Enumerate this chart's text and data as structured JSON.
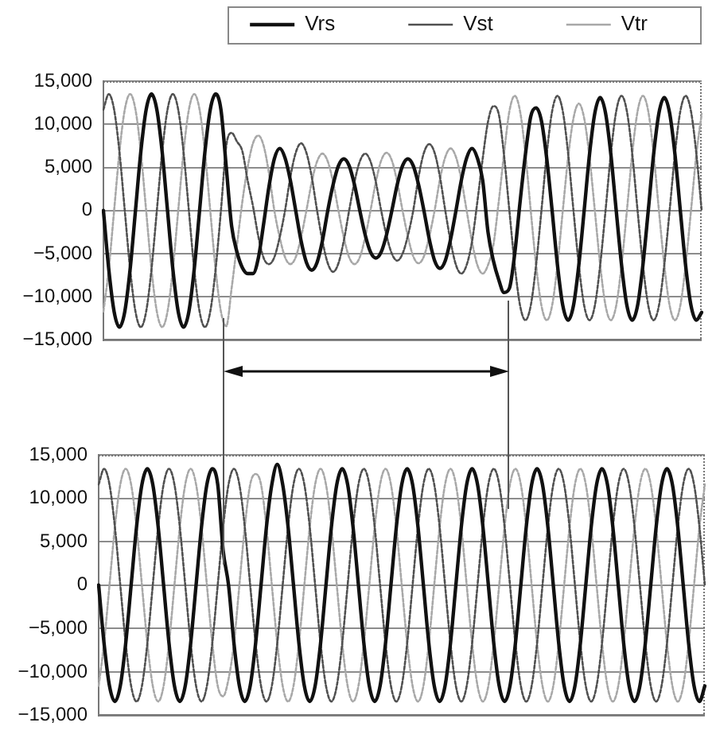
{
  "chart_data": [
    {
      "type": "line",
      "legend": "top right",
      "grid": "y",
      "marker": "none",
      "categories": [
        null,
        null,
        null,
        null,
        null,
        null,
        null,
        null,
        null,
        null,
        null,
        null,
        null,
        null,
        null,
        null,
        null,
        null,
        null,
        null,
        null,
        null,
        null,
        null,
        null,
        null,
        null,
        null,
        null,
        null,
        null,
        null,
        null,
        null,
        null,
        null,
        null,
        null,
        null,
        null,
        null,
        null,
        null,
        null,
        null,
        null,
        null,
        null,
        null,
        null,
        null,
        null,
        null,
        null,
        null,
        null,
        null,
        null,
        null,
        null,
        null,
        null,
        null,
        null,
        null,
        null,
        null,
        null,
        null,
        null,
        null,
        null,
        null,
        null,
        null,
        null,
        null,
        null,
        null,
        null,
        null,
        null,
        null,
        null,
        null,
        null,
        null,
        null,
        null,
        null,
        null,
        null,
        null,
        null,
        null,
        null,
        null,
        null,
        null,
        null,
        null,
        null,
        null,
        null,
        null,
        null,
        null,
        null,
        null,
        null,
        null,
        null,
        null
      ],
      "ylim": [
        -15000,
        15000
      ],
      "yticks": [
        {
          "value": -15000,
          "label": "−15,000"
        },
        {
          "value": -10000,
          "label": "−10,000"
        },
        {
          "value": -5000,
          "label": "−5,000"
        },
        0,
        {
          "value": 5000,
          "label": "5,000"
        },
        {
          "value": 10000,
          "label": "10,000"
        },
        {
          "value": 15000,
          "label": "15,000"
        }
      ],
      "series": [
        {
          "name": "Vrs",
          "color": "#111111",
          "line_style": "solid",
          "values": [
            0,
            -6800,
            -11700,
            -13500,
            -11700,
            -6800,
            0,
            6800,
            11700,
            13500,
            11700,
            6800,
            0,
            -6800,
            -11700,
            -13500,
            -11700,
            -6800,
            0,
            6800,
            11700,
            13500,
            11700,
            5000,
            -1800,
            -4800,
            -6600,
            -7300,
            -7300,
            -5500,
            -1500,
            2800,
            6000,
            7200,
            6100,
            3500,
            0,
            -3500,
            -6000,
            -6900,
            -6000,
            -3500,
            0,
            3000,
            5200,
            6000,
            5200,
            3000,
            0,
            -2800,
            -4800,
            -5500,
            -4800,
            -2800,
            0,
            3000,
            5200,
            6000,
            5200,
            3000,
            0,
            -3300,
            -5800,
            -6700,
            -5800,
            -3300,
            0,
            3500,
            6100,
            7200,
            6100,
            3500,
            -2500,
            -5800,
            -8000,
            -9500,
            -9000,
            -5000,
            1000,
            6500,
            10900,
            11900,
            10400,
            6000,
            0,
            -6300,
            -11000,
            -12700,
            -11000,
            -6300,
            0,
            6500,
            11300,
            13100,
            11300,
            6500,
            0,
            -6300,
            -11000,
            -12700,
            -11000,
            -6300,
            0,
            6500,
            11300,
            13100,
            11300,
            6500,
            0,
            -6400,
            -11000,
            -12700,
            -11800
          ]
        },
        {
          "name": "Vst",
          "color": "#505050",
          "line_style": "dotted",
          "values": [
            11700,
            13500,
            11700,
            6800,
            0,
            -6800,
            -11700,
            -13500,
            -11700,
            -6800,
            0,
            6800,
            11700,
            13500,
            11700,
            6800,
            0,
            -6800,
            -11700,
            -13500,
            -11700,
            -6800,
            0,
            7500,
            9000,
            8000,
            6900,
            3500,
            500,
            -3000,
            -5500,
            -6200,
            -5400,
            -3100,
            0,
            3900,
            6700,
            7800,
            6700,
            3900,
            0,
            -3500,
            -6100,
            -7100,
            -6100,
            -3500,
            0,
            3300,
            5700,
            6600,
            5700,
            3300,
            0,
            -2900,
            -5000,
            -5800,
            -5000,
            -2900,
            0,
            3900,
            6700,
            7700,
            6700,
            3900,
            0,
            -3600,
            -6300,
            -7300,
            -6300,
            -3600,
            1000,
            6000,
            10300,
            12100,
            11200,
            6400,
            0,
            -6300,
            -11000,
            -12700,
            -11000,
            -6300,
            0,
            6600,
            11500,
            13300,
            11500,
            6600,
            0,
            -6300,
            -11000,
            -12700,
            -11000,
            -6300,
            0,
            6600,
            11500,
            13300,
            11500,
            6600,
            0,
            -6300,
            -11000,
            -12700,
            -11000,
            -6300,
            0,
            6600,
            11500,
            13300,
            11500,
            6600,
            0
          ]
        },
        {
          "name": "Vtr",
          "color": "#a8a8a8",
          "line_style": "dotted",
          "values": [
            -11700,
            -6800,
            0,
            6800,
            11700,
            13500,
            11700,
            6800,
            0,
            -6800,
            -11700,
            -13500,
            -11700,
            -6800,
            0,
            6800,
            11700,
            13500,
            11700,
            6800,
            0,
            -6800,
            -11700,
            -13400,
            -9000,
            -4000,
            1000,
            5000,
            7800,
            8700,
            7500,
            4300,
            0,
            -3100,
            -5400,
            -6200,
            -5400,
            -3100,
            0,
            3300,
            5700,
            6600,
            5700,
            3300,
            0,
            -3100,
            -5400,
            -6200,
            -5400,
            -3100,
            0,
            3300,
            5800,
            6700,
            5800,
            3300,
            0,
            -3000,
            -5300,
            -6100,
            -5300,
            -3000,
            0,
            3600,
            6200,
            7200,
            6200,
            3600,
            0,
            -3600,
            -6300,
            -7300,
            -6300,
            -4000,
            1000,
            6600,
            11500,
            13300,
            11500,
            6600,
            0,
            -6300,
            -11000,
            -12700,
            -11000,
            -6300,
            0,
            6200,
            10700,
            12400,
            10700,
            6200,
            0,
            -6300,
            -11000,
            -12700,
            -11000,
            -6300,
            0,
            6600,
            11500,
            13300,
            11500,
            6600,
            0,
            -6300,
            -11000,
            -12700,
            -11000,
            -6300,
            0,
            6500,
            11200
          ]
        }
      ]
    },
    {
      "type": "line",
      "grid": "y",
      "marker": "none",
      "categories": [
        null,
        null,
        null,
        null,
        null,
        null,
        null,
        null,
        null,
        null,
        null,
        null,
        null,
        null,
        null,
        null,
        null,
        null,
        null,
        null,
        null,
        null,
        null,
        null,
        null,
        null,
        null,
        null,
        null,
        null,
        null,
        null,
        null,
        null,
        null,
        null,
        null,
        null,
        null,
        null,
        null,
        null,
        null,
        null,
        null,
        null,
        null,
        null,
        null,
        null,
        null,
        null,
        null,
        null,
        null,
        null,
        null,
        null,
        null,
        null,
        null,
        null,
        null,
        null,
        null,
        null,
        null,
        null,
        null,
        null,
        null,
        null,
        null,
        null,
        null,
        null,
        null,
        null,
        null,
        null,
        null,
        null,
        null,
        null,
        null,
        null,
        null,
        null,
        null,
        null,
        null,
        null,
        null,
        null,
        null,
        null,
        null,
        null,
        null,
        null,
        null,
        null,
        null,
        null,
        null,
        null,
        null,
        null,
        null,
        null,
        null,
        null,
        null
      ],
      "ylim": [
        -15000,
        15000
      ],
      "yticks": [
        {
          "value": -15000,
          "label": "−15,000"
        },
        {
          "value": -10000,
          "label": "−10,000"
        },
        {
          "value": -5000,
          "label": "−5,000"
        },
        0,
        {
          "value": 5000,
          "label": "5,000"
        },
        {
          "value": 10000,
          "label": "10,000"
        },
        {
          "value": 15000,
          "label": "15,000"
        }
      ],
      "series": [
        {
          "color": "#111111",
          "line_style": "solid",
          "values": [
            0,
            -6700,
            -11600,
            -13400,
            -11600,
            -6700,
            0,
            6700,
            11600,
            13400,
            11600,
            6700,
            0,
            -6700,
            -11600,
            -13400,
            -11600,
            -6700,
            0,
            6700,
            11600,
            13400,
            11600,
            4000,
            0,
            -6700,
            -11600,
            -13400,
            -11600,
            -6700,
            0,
            6700,
            11600,
            13900,
            11600,
            6700,
            0,
            -6700,
            -11600,
            -13400,
            -11600,
            -6700,
            0,
            6700,
            11600,
            13400,
            11600,
            6700,
            0,
            -6700,
            -11600,
            -13400,
            -11600,
            -6700,
            0,
            6700,
            11600,
            13400,
            11600,
            6700,
            0,
            -6700,
            -11600,
            -13400,
            -11600,
            -6700,
            0,
            6700,
            11600,
            13400,
            11600,
            6700,
            0,
            -6700,
            -11600,
            -13400,
            -11600,
            -6700,
            0,
            6700,
            11600,
            13400,
            11600,
            6700,
            0,
            -6700,
            -11600,
            -13400,
            -11600,
            -6700,
            0,
            6700,
            11600,
            13400,
            11600,
            6700,
            0,
            -6700,
            -11600,
            -13400,
            -11600,
            -6700,
            0,
            6700,
            11600,
            13400,
            11600,
            6700,
            0,
            -6700,
            -11600,
            -13400,
            -11600
          ]
        },
        {
          "color": "#505050",
          "line_style": "dotted",
          "values": [
            11600,
            13400,
            11600,
            6700,
            0,
            -6700,
            -11600,
            -13400,
            -11600,
            -6700,
            0,
            6700,
            11600,
            13400,
            11600,
            6700,
            0,
            -6700,
            -11600,
            -13400,
            -11600,
            -6700,
            0,
            6700,
            11600,
            13400,
            11600,
            6700,
            0,
            -6700,
            -11600,
            -13400,
            -11600,
            -6700,
            0,
            6700,
            11600,
            13400,
            11600,
            6700,
            0,
            -6700,
            -11600,
            -13400,
            -11600,
            -6700,
            0,
            6700,
            11600,
            13400,
            11600,
            6700,
            0,
            -6700,
            -11600,
            -13400,
            -11600,
            -6700,
            0,
            6700,
            11600,
            13400,
            11600,
            6700,
            0,
            -6700,
            -11600,
            -13400,
            -11600,
            -6700,
            0,
            6700,
            11600,
            13400,
            11600,
            6700,
            0,
            -6700,
            -11600,
            -13400,
            -11600,
            -6700,
            0,
            6700,
            11600,
            13400,
            11600,
            6700,
            0,
            -6700,
            -11600,
            -13400,
            -11600,
            -6700,
            0,
            6700,
            11600,
            13400,
            11600,
            6700,
            0,
            -6700,
            -11600,
            -13400,
            -11600,
            -6700,
            0,
            6700,
            11600,
            13400,
            11600,
            6700,
            0
          ]
        },
        {
          "color": "#a8a8a8",
          "line_style": "dotted",
          "values": [
            -11600,
            -6700,
            0,
            6700,
            11600,
            13400,
            11600,
            6700,
            0,
            -6700,
            -11600,
            -13400,
            -11600,
            -6700,
            0,
            6700,
            11600,
            13400,
            11600,
            6700,
            0,
            -6700,
            -11600,
            -12800,
            -10800,
            -6700,
            0,
            6700,
            11600,
            12800,
            11600,
            6700,
            0,
            -6700,
            -11600,
            -13400,
            -11600,
            -6700,
            0,
            6700,
            11600,
            13400,
            11600,
            6700,
            0,
            -6700,
            -11600,
            -13400,
            -11600,
            -6700,
            0,
            6700,
            11600,
            13400,
            11600,
            6700,
            0,
            -6700,
            -11600,
            -13400,
            -11600,
            -6700,
            0,
            6700,
            11600,
            13400,
            11600,
            6700,
            0,
            -6700,
            -11600,
            -13400,
            -11600,
            -6700,
            0,
            6700,
            11600,
            13400,
            11600,
            6700,
            0,
            -6700,
            -11600,
            -13400,
            -11600,
            -6700,
            0,
            6700,
            11600,
            13400,
            11600,
            6700,
            0,
            -6700,
            -11600,
            -13400,
            -11600,
            -6700,
            0,
            6700,
            11600,
            13400,
            11600,
            6700,
            0,
            -6700,
            -11600,
            -13400,
            -11600,
            -6700,
            0,
            6700,
            11600
          ]
        }
      ]
    }
  ]
}
